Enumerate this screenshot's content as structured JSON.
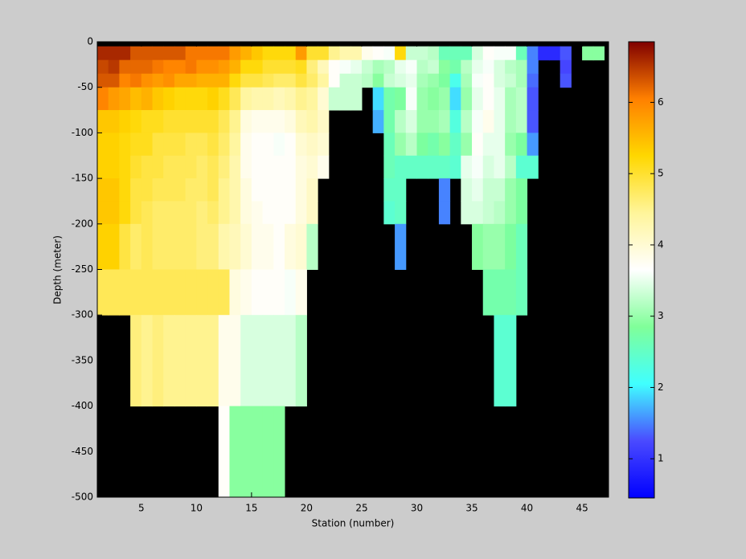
{
  "chart_data": {
    "type": "heatmap",
    "xlabel": "Station (number)",
    "ylabel": "Depth (meter)",
    "background": "#000000",
    "x": [
      1,
      2,
      3,
      4,
      5,
      6,
      7,
      8,
      9,
      10,
      11,
      12,
      13,
      14,
      15,
      16,
      17,
      18,
      19,
      20,
      21,
      22,
      23,
      24,
      25,
      26,
      27,
      28,
      29,
      30,
      31,
      32,
      33,
      34,
      35,
      36,
      37,
      38,
      39,
      40,
      41,
      42,
      43,
      44,
      45,
      46,
      47
    ],
    "y": [
      0,
      -5,
      -20,
      -35,
      -50,
      -75,
      -100,
      -125,
      -150,
      -175,
      -200,
      -250,
      -300,
      -400,
      -500
    ],
    "values": [
      [
        null,
        null,
        null,
        null,
        null,
        null,
        null,
        null,
        null,
        null,
        null,
        null,
        null,
        null,
        null,
        null,
        null,
        null,
        null,
        null,
        null,
        null,
        null,
        null,
        null,
        null,
        null,
        null,
        null,
        null,
        null,
        null,
        null,
        null,
        null,
        null,
        null,
        null,
        null,
        null,
        null,
        null,
        null,
        null,
        null,
        null
      ],
      [
        6.6,
        6.6,
        6.6,
        6.3,
        6.3,
        6.3,
        6.3,
        6.3,
        6.1,
        6.1,
        6.1,
        6.1,
        5.8,
        5.6,
        5.4,
        5.2,
        5.2,
        5.2,
        5.8,
        5.0,
        5.0,
        4.5,
        4.3,
        4.3,
        3.8,
        3.7,
        3.6,
        5.2,
        3.3,
        3.3,
        3.2,
        2.6,
        2.6,
        2.6,
        3.4,
        3.7,
        3.6,
        3.6,
        2.6,
        1.5,
        0.9,
        0.9,
        1.3,
        null,
        2.9,
        2.9
      ],
      [
        6.4,
        6.5,
        6.2,
        6.2,
        6.2,
        6.1,
        6.0,
        6.0,
        6.1,
        5.9,
        5.9,
        5.8,
        5.6,
        5.2,
        5.2,
        5.0,
        5.0,
        5.0,
        5.1,
        4.6,
        4.2,
        3.7,
        3.6,
        3.5,
        3.3,
        3.1,
        3.2,
        3.5,
        3.6,
        3.2,
        3.3,
        2.9,
        2.7,
        3.2,
        3.5,
        3.6,
        3.4,
        3.2,
        3.1,
        1.5,
        null,
        null,
        1.2,
        null,
        null,
        null
      ],
      [
        6.3,
        6.3,
        6.0,
        6.1,
        5.9,
        5.8,
        5.9,
        5.7,
        5.7,
        5.6,
        5.6,
        5.6,
        5.2,
        4.9,
        4.9,
        4.8,
        4.7,
        4.7,
        4.9,
        4.7,
        4.4,
        3.7,
        3.3,
        3.3,
        3.2,
        2.9,
        3.3,
        3.4,
        3.5,
        3.1,
        3.0,
        2.8,
        2.2,
        3.1,
        3.6,
        3.7,
        3.4,
        3.3,
        3.1,
        1.4,
        null,
        null,
        1.3,
        null,
        null,
        null
      ],
      [
        6.0,
        5.8,
        5.7,
        5.5,
        5.6,
        5.4,
        5.3,
        5.2,
        5.2,
        5.2,
        5.3,
        5.1,
        4.8,
        4.4,
        4.3,
        4.3,
        4.2,
        4.3,
        4.5,
        4.4,
        4.0,
        3.3,
        3.3,
        3.3,
        null,
        1.9,
        2.7,
        2.8,
        3.6,
        3.0,
        2.9,
        3.0,
        1.9,
        3.0,
        3.5,
        3.7,
        3.5,
        3.1,
        3.2,
        1.3,
        null,
        null,
        null,
        null,
        null,
        null
      ],
      [
        5.4,
        5.4,
        5.3,
        5.2,
        5.1,
        5.1,
        5.0,
        5.0,
        5.0,
        5.0,
        5.0,
        4.8,
        4.5,
        3.9,
        3.8,
        3.8,
        3.8,
        3.9,
        4.2,
        4.3,
        4.1,
        null,
        null,
        null,
        null,
        1.7,
        2.7,
        3.2,
        3.4,
        3.0,
        3.0,
        3.1,
        2.3,
        3.2,
        3.6,
        3.8,
        3.5,
        3.1,
        3.2,
        1.3,
        null,
        null,
        null,
        null,
        null,
        null
      ],
      [
        5.3,
        5.3,
        5.2,
        5.1,
        5.1,
        4.9,
        4.9,
        4.9,
        4.8,
        4.8,
        4.9,
        4.7,
        4.4,
        3.8,
        3.7,
        3.7,
        3.6,
        3.7,
        4.0,
        4.1,
        4.0,
        null,
        null,
        null,
        null,
        null,
        2.6,
        3.0,
        3.2,
        2.8,
        2.7,
        2.9,
        2.5,
        3.0,
        3.7,
        3.5,
        3.5,
        3.0,
        2.8,
        1.6,
        null,
        null,
        null,
        null,
        null,
        null
      ],
      [
        5.3,
        5.3,
        5.2,
        5.0,
        4.9,
        4.9,
        4.8,
        4.8,
        4.8,
        4.7,
        4.8,
        4.6,
        4.3,
        3.8,
        3.7,
        3.7,
        3.7,
        3.7,
        3.9,
        4.0,
        3.8,
        null,
        null,
        null,
        null,
        null,
        2.6,
        2.5,
        2.5,
        2.5,
        2.5,
        2.5,
        2.4,
        3.5,
        3.6,
        3.4,
        3.5,
        3.2,
        2.4,
        2.4,
        null,
        null,
        null,
        null,
        null,
        null
      ],
      [
        5.4,
        5.4,
        5.2,
        4.9,
        4.9,
        4.8,
        4.8,
        4.8,
        4.7,
        4.7,
        4.8,
        4.5,
        4.3,
        3.9,
        3.7,
        3.7,
        3.7,
        3.7,
        3.9,
        4.1,
        null,
        null,
        null,
        null,
        null,
        null,
        2.5,
        2.5,
        null,
        null,
        null,
        1.5,
        null,
        3.4,
        3.5,
        3.3,
        3.3,
        3.0,
        2.8,
        null,
        null,
        null,
        null,
        null,
        null,
        null
      ],
      [
        5.4,
        5.4,
        5.2,
        4.9,
        4.8,
        4.7,
        4.7,
        4.7,
        4.7,
        4.6,
        4.7,
        4.5,
        4.3,
        3.9,
        3.8,
        3.7,
        3.7,
        3.7,
        3.9,
        4.1,
        null,
        null,
        null,
        null,
        null,
        null,
        2.4,
        2.5,
        null,
        null,
        null,
        1.5,
        null,
        3.4,
        3.4,
        3.3,
        3.2,
        3.0,
        2.8,
        null,
        null,
        null,
        null,
        null,
        null,
        null
      ],
      [
        5.3,
        5.3,
        4.9,
        4.7,
        4.8,
        4.7,
        4.7,
        4.7,
        4.7,
        4.6,
        4.6,
        4.3,
        4.2,
        4.0,
        3.8,
        3.8,
        3.7,
        3.9,
        4.0,
        3.2,
        null,
        null,
        null,
        null,
        null,
        null,
        null,
        1.6,
        null,
        null,
        null,
        null,
        null,
        null,
        2.9,
        3.0,
        3.0,
        2.8,
        2.6,
        null,
        null,
        null,
        null,
        null,
        null,
        null
      ],
      [
        4.8,
        4.8,
        4.8,
        4.8,
        4.8,
        4.8,
        4.8,
        4.8,
        4.8,
        4.8,
        4.8,
        4.8,
        3.9,
        3.8,
        3.7,
        3.7,
        3.7,
        3.6,
        3.8,
        null,
        null,
        null,
        null,
        null,
        null,
        null,
        null,
        null,
        null,
        null,
        null,
        null,
        null,
        null,
        null,
        2.7,
        2.7,
        2.7,
        2.6,
        null,
        null,
        null,
        null,
        null,
        null,
        null
      ],
      [
        null,
        null,
        null,
        4.6,
        4.5,
        4.6,
        4.5,
        4.5,
        4.5,
        4.5,
        4.5,
        3.8,
        3.8,
        3.4,
        3.4,
        3.4,
        3.4,
        3.4,
        3.2,
        null,
        null,
        null,
        null,
        null,
        null,
        null,
        null,
        null,
        null,
        null,
        null,
        null,
        null,
        null,
        null,
        null,
        2.4,
        2.4,
        null,
        null,
        null,
        null,
        null,
        null,
        null,
        null
      ],
      [
        null,
        null,
        null,
        null,
        null,
        null,
        null,
        null,
        null,
        null,
        null,
        3.7,
        2.9,
        2.9,
        2.9,
        2.9,
        2.9,
        null,
        null,
        null,
        null,
        null,
        null,
        null,
        null,
        null,
        null,
        null,
        null,
        null,
        null,
        null,
        null,
        null,
        null,
        null,
        null,
        null,
        null,
        null,
        null,
        null,
        null,
        null,
        null,
        null
      ]
    ],
    "xlim": [
      1,
      47.4
    ],
    "xticks": [
      5,
      10,
      15,
      20,
      25,
      30,
      35,
      40,
      45
    ],
    "ylim": [
      -500,
      0
    ],
    "yticks": [
      0,
      -50,
      -100,
      -150,
      -200,
      -250,
      -300,
      -350,
      -400,
      -450,
      -500
    ],
    "clim": [
      0.45,
      6.85
    ],
    "cticks": [
      1,
      2,
      3,
      4,
      5,
      6
    ],
    "colormap": [
      "#0000ff",
      "#4a4aff",
      "#40ffff",
      "#80ff99",
      "#ffffff",
      "#fff59a",
      "#ffd700",
      "#ff8000",
      "#800000"
    ]
  }
}
